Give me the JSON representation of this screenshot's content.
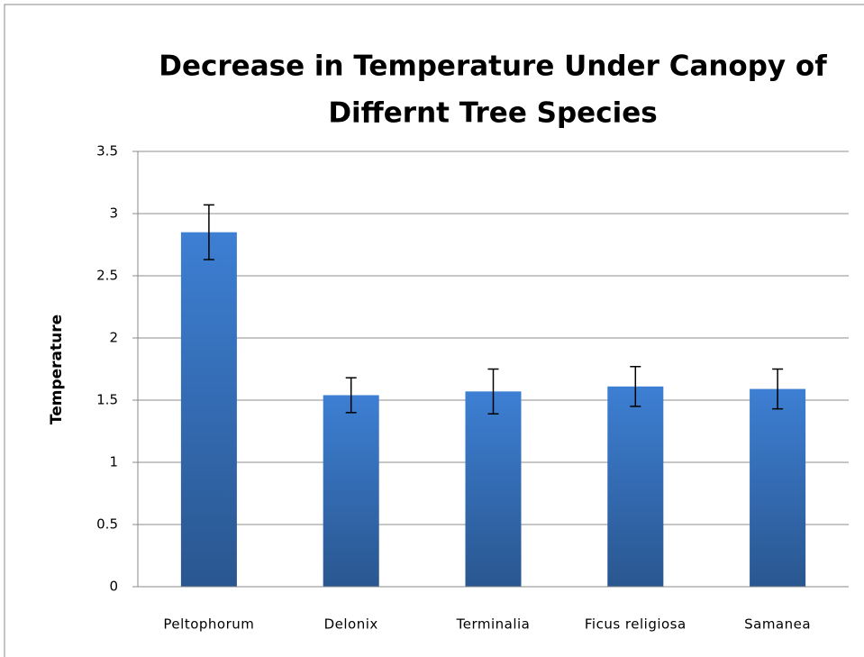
{
  "chart_data": {
    "type": "bar",
    "title": [
      "Decrease in Temperature  Under Canopy  of",
      "Differnt Tree Species"
    ],
    "y_label": "Temperature",
    "categories": [
      "Peltophorum",
      "Delonix",
      "Terminalia",
      "Ficus religiosa",
      "Samanea"
    ],
    "values": [
      2.85,
      1.54,
      1.57,
      1.61,
      1.59
    ],
    "errors": [
      0.22,
      0.14,
      0.18,
      0.16,
      0.16
    ],
    "color": "#3d7fd3",
    "ylim": [
      0,
      3.5
    ],
    "yticks": [
      0,
      0.5,
      1,
      1.5,
      2,
      2.5,
      3,
      3.5
    ],
    "grid": true
  }
}
